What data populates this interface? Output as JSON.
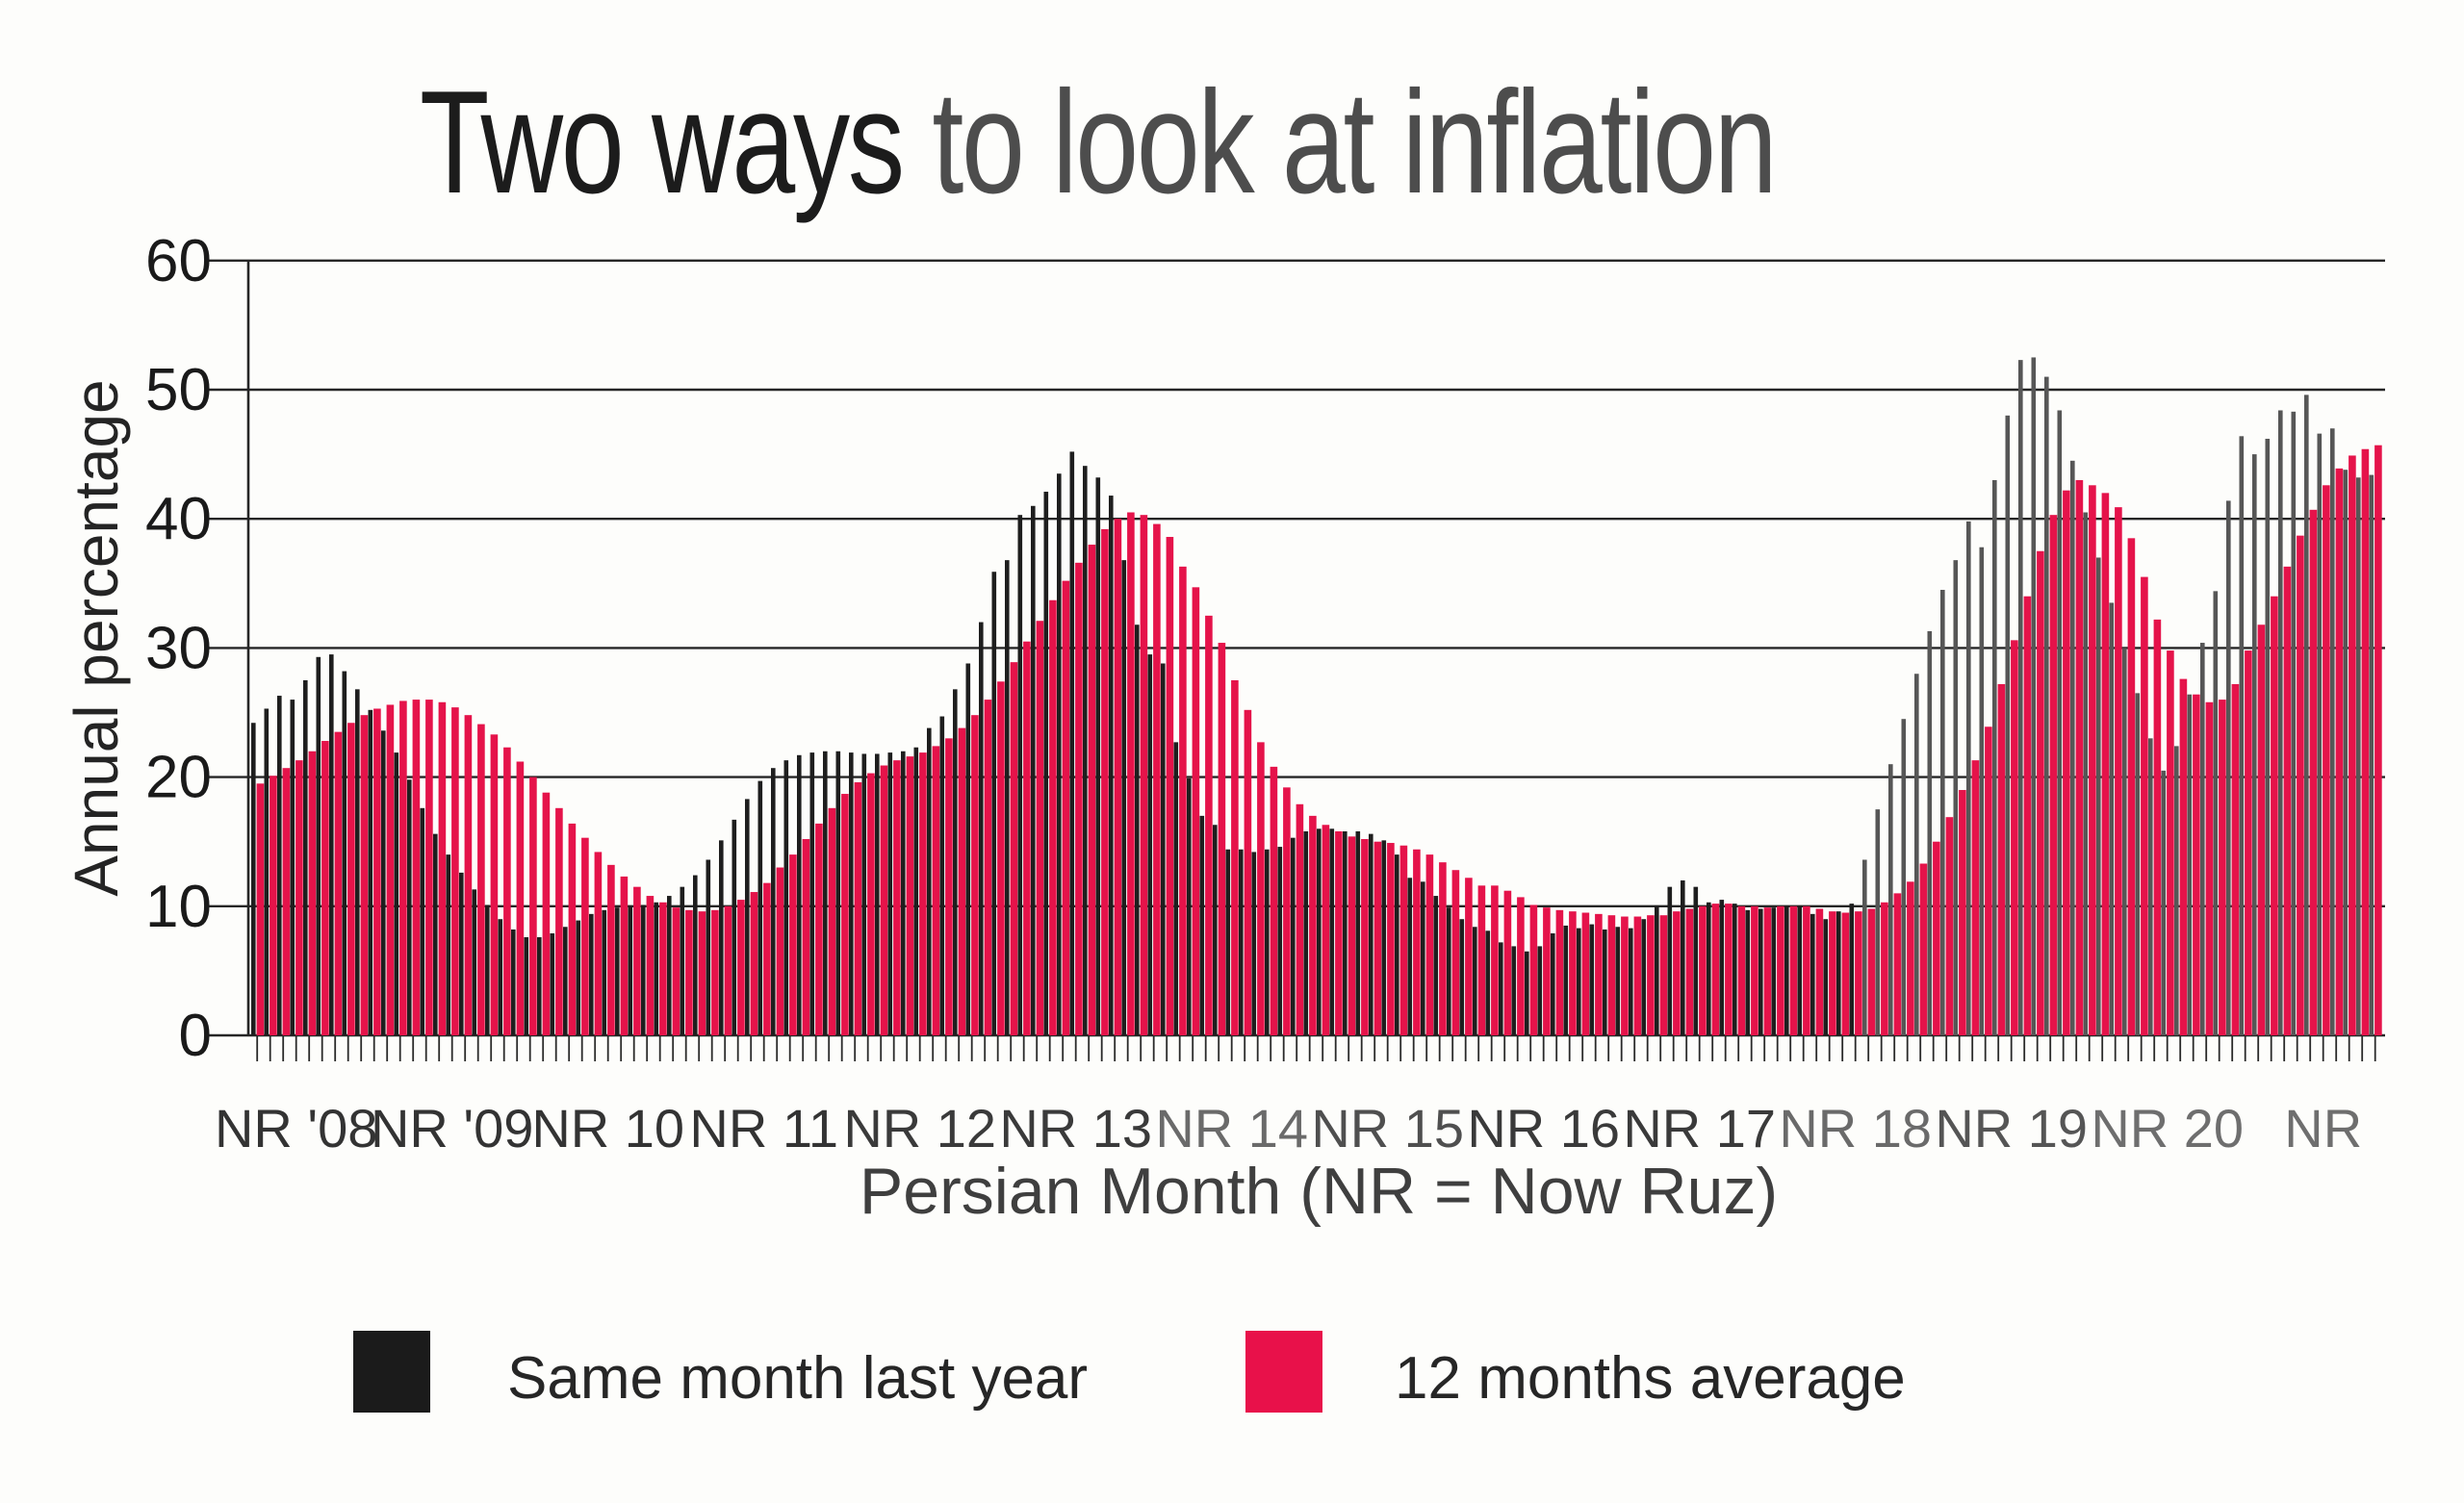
{
  "title": {
    "text": "Two ways to look at inflation",
    "part_dark": "Two ways",
    "part_light": " to look at inflation"
  },
  "y_axis": {
    "title": "Annual percentage",
    "ticks": [
      0,
      10,
      20,
      30,
      40,
      50,
      60
    ]
  },
  "x_axis": {
    "title": "Persian Month (NR = Now Ruz)",
    "tick_labels": [
      {
        "label": "NR '08",
        "month_index": 3,
        "color": "#333333"
      },
      {
        "label": "NR '09",
        "month_index": 15,
        "color": "#333333"
      },
      {
        "label": "NR 10",
        "month_index": 27,
        "color": "#333333"
      },
      {
        "label": "NR 11",
        "month_index": 39,
        "color": "#333333"
      },
      {
        "label": "NR 12",
        "month_index": 51,
        "color": "#3a3a3a"
      },
      {
        "label": "NR 13",
        "month_index": 63,
        "color": "#3a3a3a"
      },
      {
        "label": "NR 14",
        "month_index": 75,
        "color": "#6a6a6a"
      },
      {
        "label": "NR 15",
        "month_index": 87,
        "color": "#4f4f4f"
      },
      {
        "label": "NR 16",
        "month_index": 99,
        "color": "#3a3a3a"
      },
      {
        "label": "NR 17",
        "month_index": 111,
        "color": "#3a3a3a"
      },
      {
        "label": "NR 18",
        "month_index": 123,
        "color": "#6a6a6a"
      },
      {
        "label": "NR 19",
        "month_index": 135,
        "color": "#555555"
      },
      {
        "label": "NR 20",
        "month_index": 147,
        "color": "#6e6e6e"
      },
      {
        "label": "NR",
        "month_index": 159,
        "color": "#6e6e6e"
      }
    ]
  },
  "legend": [
    {
      "label": "Same month last year",
      "color": "#1b1b1b"
    },
    {
      "label": "12 months average",
      "color": "#e8114a"
    }
  ],
  "chart_data": {
    "type": "bar",
    "title": "Two ways to look at inflation",
    "xlabel": "Persian Month (NR = Now Ruz)",
    "ylabel": "Annual percentage",
    "ylim": [
      0,
      60
    ],
    "grid": true,
    "legend_position": "bottom",
    "x_unit": "Persian month, Now Ruz year ticks",
    "series": [
      {
        "name": "Same month last year",
        "color": "#1e1e1e",
        "faded_color": "#565656",
        "faded_from_index": 124,
        "values": [
          24.2,
          25.3,
          26.3,
          26.0,
          27.5,
          29.3,
          29.5,
          28.2,
          26.8,
          25.2,
          23.6,
          21.9,
          19.8,
          17.6,
          15.6,
          14.0,
          12.6,
          11.3,
          10.1,
          9.0,
          8.2,
          7.6,
          7.6,
          7.9,
          8.4,
          8.9,
          9.4,
          9.7,
          9.9,
          10.0,
          10.1,
          10.3,
          10.8,
          11.5,
          12.4,
          13.6,
          15.1,
          16.7,
          18.3,
          19.7,
          20.7,
          21.3,
          21.7,
          21.9,
          22.0,
          22.0,
          21.9,
          21.8,
          21.8,
          21.9,
          22.0,
          22.3,
          23.8,
          24.7,
          26.8,
          28.8,
          32.0,
          35.9,
          36.8,
          40.3,
          41.0,
          42.1,
          43.5,
          45.2,
          44.1,
          43.2,
          41.8,
          36.8,
          31.8,
          29.5,
          28.8,
          22.7,
          19.9,
          17.0,
          16.3,
          14.4,
          14.4,
          14.2,
          14.4,
          14.6,
          15.3,
          15.8,
          16.0,
          16.0,
          15.8,
          15.8,
          15.6,
          15.1,
          14.0,
          12.2,
          11.9,
          10.8,
          9.9,
          9.0,
          8.4,
          8.1,
          7.2,
          6.9,
          6.5,
          6.9,
          7.9,
          8.5,
          8.3,
          8.6,
          8.2,
          8.4,
          8.3,
          9.0,
          10.0,
          11.5,
          12.0,
          11.5,
          10.3,
          10.5,
          10.2,
          9.7,
          9.8,
          9.9,
          10.0,
          10.0,
          9.4,
          9.0,
          9.6,
          10.2,
          13.6,
          17.5,
          21.0,
          24.5,
          28.0,
          31.3,
          34.5,
          36.8,
          39.8,
          37.8,
          43.0,
          48.0,
          52.3,
          52.5,
          51.0,
          48.4,
          44.5,
          40.5,
          37.0,
          33.5,
          30.0,
          26.5,
          23.0,
          20.5,
          22.4,
          26.4,
          30.4,
          34.4,
          41.4,
          46.4,
          45.0,
          46.2,
          48.4,
          48.3,
          49.6,
          46.6,
          47.0,
          43.8,
          43.2,
          43.4
        ]
      },
      {
        "name": "12 months average",
        "color": "#e5134a",
        "values": [
          19.5,
          20.1,
          20.7,
          21.3,
          22.0,
          22.8,
          23.5,
          24.2,
          24.8,
          25.3,
          25.6,
          25.9,
          26.0,
          26.0,
          25.8,
          25.4,
          24.8,
          24.1,
          23.3,
          22.3,
          21.2,
          20.0,
          18.8,
          17.6,
          16.4,
          15.3,
          14.2,
          13.2,
          12.3,
          11.5,
          10.8,
          10.3,
          9.9,
          9.7,
          9.6,
          9.7,
          10.0,
          10.5,
          11.1,
          11.8,
          13.0,
          14.0,
          15.2,
          16.4,
          17.6,
          18.7,
          19.6,
          20.3,
          20.9,
          21.3,
          21.6,
          21.9,
          22.4,
          23.0,
          23.8,
          24.8,
          26.0,
          27.4,
          28.9,
          30.5,
          32.1,
          33.7,
          35.2,
          36.6,
          38.0,
          39.2,
          40.0,
          40.5,
          40.3,
          39.6,
          38.6,
          36.3,
          34.7,
          32.5,
          30.4,
          27.5,
          25.2,
          22.7,
          20.8,
          19.2,
          17.9,
          17.0,
          16.3,
          15.8,
          15.4,
          15.2,
          15.0,
          14.9,
          14.7,
          14.4,
          14.0,
          13.4,
          12.8,
          12.2,
          11.6,
          11.6,
          11.2,
          10.7,
          10.1,
          9.9,
          9.7,
          9.6,
          9.5,
          9.4,
          9.3,
          9.2,
          9.2,
          9.3,
          9.3,
          9.6,
          9.8,
          10.0,
          10.2,
          10.2,
          10.0,
          10.0,
          9.9,
          10.0,
          10.0,
          10.0,
          9.8,
          9.6,
          9.5,
          9.6,
          9.8,
          10.3,
          11.0,
          11.9,
          13.3,
          15.0,
          16.9,
          19.0,
          21.3,
          23.9,
          27.2,
          30.6,
          34.0,
          37.5,
          40.3,
          42.2,
          43.0,
          42.6,
          42.0,
          40.9,
          38.5,
          35.5,
          32.2,
          29.8,
          27.6,
          26.4,
          25.8,
          26.0,
          27.2,
          29.8,
          31.8,
          34.0,
          36.3,
          38.7,
          40.7,
          42.6,
          43.9,
          44.9,
          45.4,
          45.7
        ]
      }
    ],
    "year_tick_month_indices": [
      3,
      15,
      27,
      39,
      51,
      63,
      75,
      87,
      99,
      111,
      123,
      135,
      147,
      159
    ]
  }
}
